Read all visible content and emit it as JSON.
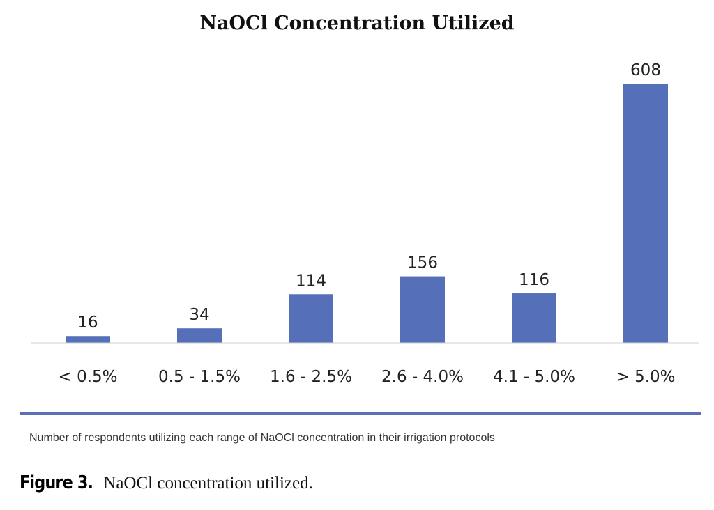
{
  "chart_data": {
    "type": "bar",
    "title": "NaOCl Concentration Utilized",
    "categories": [
      "< 0.5%",
      "0.5 - 1.5%",
      "1.6 - 2.5%",
      "2.6 - 4.0%",
      "4.1 - 5.0%",
      "> 5.0%"
    ],
    "values": [
      16,
      34,
      114,
      156,
      116,
      608
    ],
    "data_labels": [
      "16",
      "34",
      "114",
      "156",
      "116",
      "608"
    ],
    "xlabel": "",
    "ylabel": "",
    "ylim": [
      0,
      608
    ],
    "grid": false,
    "legend": "none",
    "bar_color": "#5570b8",
    "axis_color": "#cfcfcf"
  },
  "footnote": "Number of respondents utilizing each range of NaOCl concentration in their irrigation protocols",
  "caption": {
    "label": "Figure 3.",
    "text": "NaOCl concentration utilized."
  },
  "colors": {
    "divider": "#5a6fb6"
  }
}
